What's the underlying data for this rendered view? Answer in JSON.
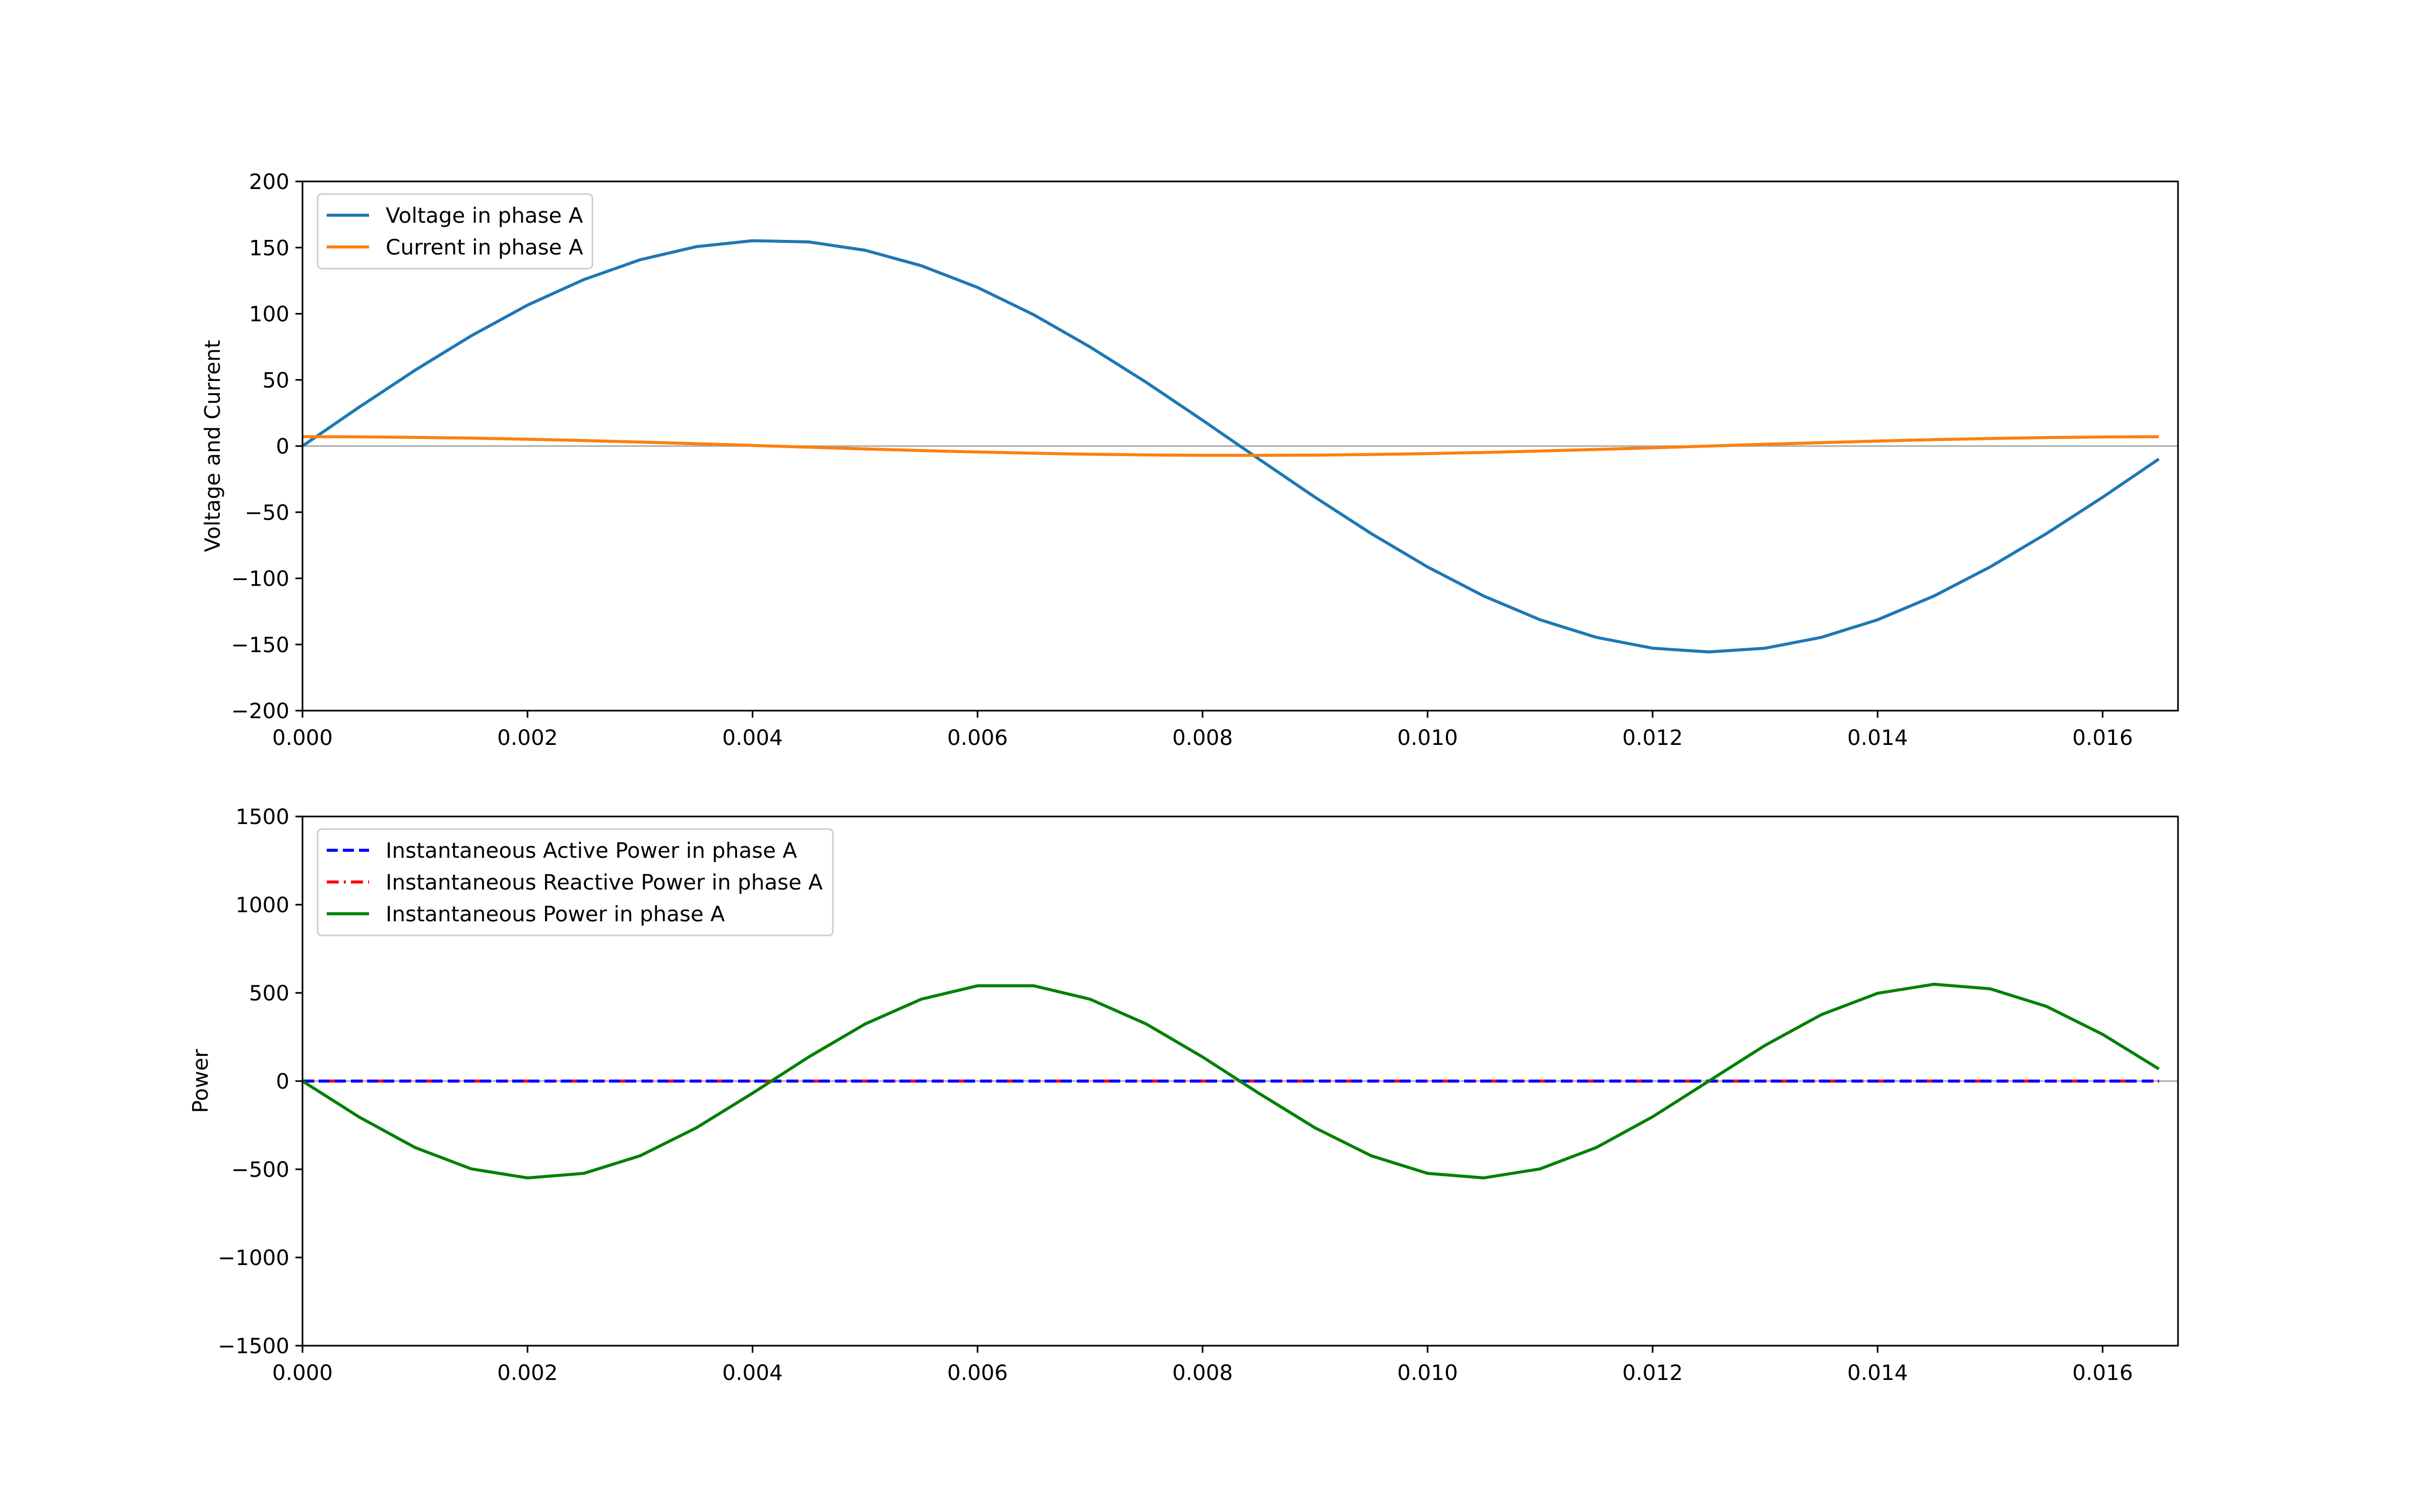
{
  "chart_data": [
    {
      "type": "line",
      "title": "",
      "xlabel": "",
      "ylabel": "Voltage and Current",
      "xlim": [
        0,
        0.01667
      ],
      "ylim": [
        -200,
        200
      ],
      "xticks": [
        "0.000",
        "0.002",
        "0.004",
        "0.006",
        "0.008",
        "0.010",
        "0.012",
        "0.014",
        "0.016"
      ],
      "yticks": [
        "200",
        "150",
        "100",
        "50",
        "0",
        "−50",
        "−100",
        "−150",
        "−200"
      ],
      "legend_position": "top-left",
      "grid": false,
      "zero_line": true,
      "x": [
        0,
        0.0005,
        0.001,
        0.0015,
        0.002,
        0.0025,
        0.003,
        0.0035,
        0.004,
        0.0045,
        0.005,
        0.0055,
        0.006,
        0.0065,
        0.007,
        0.0075,
        0.008,
        0.0085,
        0.009,
        0.0095,
        0.01,
        0.0105,
        0.011,
        0.0115,
        0.012,
        0.0125,
        0.013,
        0.0135,
        0.014,
        0.0145,
        0.015,
        0.0155,
        0.016,
        0.0165
      ],
      "series": [
        {
          "name": "Voltage in phase A",
          "color": "#1f77b4",
          "style": "solid",
          "values": [
            0,
            29.2,
            57.3,
            83.3,
            106.5,
            125.8,
            140.8,
            150.7,
            155.2,
            154.3,
            148.0,
            136.3,
            119.9,
            99.2,
            74.9,
            48.1,
            19.5,
            -9.8,
            -38.7,
            -66.2,
            -91.4,
            -113.4,
            -131.3,
            -144.6,
            -152.8,
            -155.6,
            -152.8,
            -144.6,
            -131.3,
            -113.4,
            -91.4,
            -66.2,
            -38.7,
            -9.8
          ]
        },
        {
          "name": "Current in phase A",
          "color": "#ff7f0e",
          "style": "solid",
          "values": [
            7.07,
            6.94,
            6.57,
            5.97,
            5.15,
            4.16,
            3.01,
            1.76,
            0.44,
            -0.89,
            -2.18,
            -3.41,
            -4.51,
            -5.45,
            -6.2,
            -6.72,
            -7.01,
            -7.06,
            -6.85,
            -6.4,
            -5.72,
            -4.84,
            -3.79,
            -2.6,
            -1.32,
            0,
            1.32,
            2.6,
            3.79,
            4.84,
            5.72,
            6.4,
            6.85,
            7.06
          ]
        }
      ]
    },
    {
      "type": "line",
      "title": "",
      "xlabel": "",
      "ylabel": "Power",
      "xlim": [
        0,
        0.01667
      ],
      "ylim": [
        -1500,
        1500
      ],
      "xticks": [
        "0.000",
        "0.002",
        "0.004",
        "0.006",
        "0.008",
        "0.010",
        "0.012",
        "0.014",
        "0.016"
      ],
      "yticks": [
        "1500",
        "1000",
        "500",
        "0",
        "−500",
        "−1000",
        "−1500"
      ],
      "legend_position": "top-left",
      "grid": false,
      "zero_line": true,
      "x": [
        0,
        0.0005,
        0.001,
        0.0015,
        0.002,
        0.0025,
        0.003,
        0.0035,
        0.004,
        0.0045,
        0.005,
        0.0055,
        0.006,
        0.0065,
        0.007,
        0.0075,
        0.008,
        0.0085,
        0.009,
        0.0095,
        0.01,
        0.0105,
        0.011,
        0.0115,
        0.012,
        0.0125,
        0.013,
        0.0135,
        0.014,
        0.0145,
        0.015,
        0.0155,
        0.016,
        0.0165
      ],
      "series": [
        {
          "name": "Instantaneous Active Power in phase A",
          "color": "#0000ff",
          "style": "dashed",
          "values": [
            0,
            0,
            0,
            0,
            0,
            0,
            0,
            0,
            0,
            0,
            0,
            0,
            0,
            0,
            0,
            0,
            0,
            0,
            0,
            0,
            0,
            0,
            0,
            0,
            0,
            0,
            0,
            0,
            0,
            0,
            0,
            0,
            0,
            0
          ]
        },
        {
          "name": "Instantaneous Reactive Power in phase A",
          "color": "#ff0000",
          "style": "dashdot",
          "values": [
            0,
            0,
            0,
            0,
            0,
            0,
            0,
            0,
            0,
            0,
            0,
            0,
            0,
            0,
            0,
            0,
            0,
            0,
            0,
            0,
            0,
            0,
            0,
            0,
            0,
            0,
            0,
            0,
            0,
            0,
            0,
            0,
            0,
            0
          ]
        },
        {
          "name": "Instantaneous Power in phase A",
          "color": "#008000",
          "style": "solid",
          "values": [
            0,
            -202.5,
            -376.5,
            -497.6,
            -548.9,
            -523.1,
            -423.8,
            -265.0,
            -68.9,
            136.8,
            323.3,
            464.4,
            540.3,
            540.3,
            464.4,
            323.3,
            136.8,
            -68.9,
            -265.0,
            -423.8,
            -523.1,
            -548.9,
            -497.6,
            -376.5,
            -202.5,
            0,
            202.5,
            376.5,
            497.6,
            548.9,
            523.1,
            423.8,
            265.0,
            68.9
          ]
        }
      ]
    }
  ]
}
